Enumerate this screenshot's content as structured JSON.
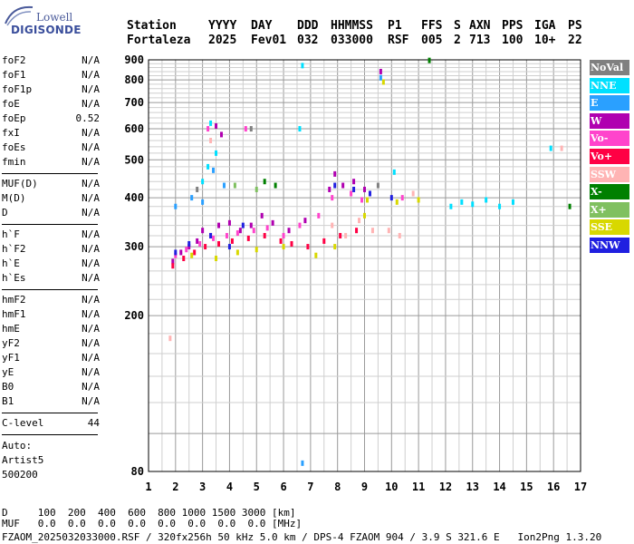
{
  "logo": {
    "top": "Lowell",
    "main": "DIGISONDE"
  },
  "header": {
    "labels": [
      "Station",
      "YYYY",
      "DAY",
      "DDD",
      "HHMMSS",
      "P1",
      "FFS",
      "S",
      "AXN",
      "PPS",
      "IGA",
      "PS"
    ],
    "values": [
      "Fortaleza",
      "2025",
      "Fev01",
      "032",
      "033000",
      "RSF",
      "005",
      "2",
      "713",
      "100",
      "10+",
      "22"
    ]
  },
  "params_group1": [
    {
      "k": "foF2",
      "v": "N/A"
    },
    {
      "k": "foF1",
      "v": "N/A"
    },
    {
      "k": "foF1p",
      "v": "N/A"
    },
    {
      "k": "foE",
      "v": "N/A"
    },
    {
      "k": "foEp",
      "v": "0.52"
    },
    {
      "k": "fxI",
      "v": "N/A"
    },
    {
      "k": "foEs",
      "v": "N/A"
    },
    {
      "k": "fmin",
      "v": "N/A"
    }
  ],
  "params_group2": [
    {
      "k": "MUF(D)",
      "v": "N/A"
    },
    {
      "k": "M(D)",
      "v": "N/A"
    },
    {
      "k": "D",
      "v": "N/A"
    }
  ],
  "params_group3": [
    {
      "k": "h`F",
      "v": "N/A"
    },
    {
      "k": "h`F2",
      "v": "N/A"
    },
    {
      "k": "h`E",
      "v": "N/A"
    },
    {
      "k": "h`Es",
      "v": "N/A"
    }
  ],
  "params_group4": [
    {
      "k": "hmF2",
      "v": "N/A"
    },
    {
      "k": "hmF1",
      "v": "N/A"
    },
    {
      "k": "hmE",
      "v": "N/A"
    },
    {
      "k": "yF2",
      "v": "N/A"
    },
    {
      "k": "yF1",
      "v": "N/A"
    },
    {
      "k": "yE",
      "v": "N/A"
    },
    {
      "k": "B0",
      "v": "N/A"
    },
    {
      "k": "B1",
      "v": "N/A"
    }
  ],
  "clevel": {
    "k": "C-level",
    "v": "44"
  },
  "auto": [
    "Auto:",
    "Artist5",
    "500200"
  ],
  "legend": [
    {
      "label": "NoVal",
      "color": "#808080"
    },
    {
      "label": "NNE",
      "color": "#00e0ff"
    },
    {
      "label": "E",
      "color": "#2aa0ff"
    },
    {
      "label": "W",
      "color": "#b000b0"
    },
    {
      "label": "Vo-",
      "color": "#ff44cc"
    },
    {
      "label": "Vo+",
      "color": "#ff0044"
    },
    {
      "label": "SSW",
      "color": "#ffb4b4"
    },
    {
      "label": "X-",
      "color": "#008000"
    },
    {
      "label": "X+",
      "color": "#80c060"
    },
    {
      "label": "SSE",
      "color": "#d8d800"
    },
    {
      "label": "NNW",
      "color": "#2020e0"
    }
  ],
  "footer": {
    "d_row": "D     100  200  400  600  800 1000 1500 3000 [km]",
    "muf_row": "MUF   0.0  0.0  0.0  0.0  0.0  0.0  0.0  0.0 [MHz]",
    "file_row": "FZAOM_2025032033000.RSF / 320fx256h 50 kHz 5.0 km / DPS-4 FZAOM 904 / 3.9 S 321.6 E   Ion2Png 1.3.20"
  },
  "chart_data": {
    "type": "scatter",
    "title": "",
    "xlabel": "",
    "ylabel": "",
    "xlim": [
      1,
      17
    ],
    "ylim": [
      80,
      900
    ],
    "x_ticks": [
      1,
      2,
      3,
      4,
      5,
      6,
      7,
      8,
      9,
      10,
      11,
      12,
      13,
      14,
      15,
      16,
      17
    ],
    "y_ticks": [
      80,
      200,
      300,
      400,
      500,
      600,
      700,
      800,
      900
    ],
    "y_scale": "log",
    "grid": true,
    "series": [
      {
        "name": "W",
        "points": [
          [
            1.9,
            275
          ],
          [
            2.2,
            290
          ],
          [
            2.5,
            300
          ],
          [
            2.8,
            310
          ],
          [
            3.0,
            330
          ],
          [
            3.3,
            320
          ],
          [
            3.6,
            340
          ],
          [
            4.0,
            345
          ],
          [
            4.4,
            330
          ],
          [
            4.8,
            340
          ],
          [
            5.2,
            360
          ],
          [
            5.6,
            345
          ],
          [
            6.2,
            330
          ],
          [
            6.8,
            350
          ],
          [
            7.7,
            420
          ],
          [
            7.9,
            460
          ],
          [
            8.2,
            430
          ],
          [
            8.6,
            440
          ],
          [
            9.0,
            420
          ],
          [
            9.6,
            840
          ],
          [
            3.5,
            610
          ],
          [
            3.7,
            580
          ]
        ]
      },
      {
        "name": "Vo-",
        "points": [
          [
            2.0,
            285
          ],
          [
            2.4,
            295
          ],
          [
            2.9,
            305
          ],
          [
            3.4,
            315
          ],
          [
            3.9,
            320
          ],
          [
            4.3,
            325
          ],
          [
            4.9,
            330
          ],
          [
            5.4,
            335
          ],
          [
            6.0,
            320
          ],
          [
            6.6,
            340
          ],
          [
            7.3,
            360
          ],
          [
            7.8,
            400
          ],
          [
            8.5,
            410
          ],
          [
            8.9,
            395
          ],
          [
            10.4,
            400
          ],
          [
            3.2,
            600
          ],
          [
            4.6,
            600
          ]
        ]
      },
      {
        "name": "Vo+",
        "points": [
          [
            1.9,
            268
          ],
          [
            2.3,
            280
          ],
          [
            2.7,
            290
          ],
          [
            3.1,
            300
          ],
          [
            3.6,
            305
          ],
          [
            4.1,
            310
          ],
          [
            4.7,
            315
          ],
          [
            5.3,
            320
          ],
          [
            5.9,
            310
          ],
          [
            6.3,
            305
          ],
          [
            6.9,
            300
          ],
          [
            7.5,
            310
          ],
          [
            8.1,
            320
          ],
          [
            8.7,
            330
          ]
        ]
      },
      {
        "name": "SSW",
        "points": [
          [
            7.8,
            340
          ],
          [
            8.3,
            320
          ],
          [
            8.8,
            350
          ],
          [
            9.3,
            330
          ],
          [
            9.9,
            330
          ],
          [
            10.3,
            320
          ],
          [
            10.8,
            410
          ],
          [
            1.8,
            175
          ],
          [
            16.3,
            535
          ],
          [
            3.3,
            560
          ]
        ]
      },
      {
        "name": "SSE",
        "points": [
          [
            2.6,
            285
          ],
          [
            3.5,
            280
          ],
          [
            4.3,
            290
          ],
          [
            5.0,
            295
          ],
          [
            6.0,
            300
          ],
          [
            7.2,
            285
          ],
          [
            7.9,
            300
          ],
          [
            9.1,
            395
          ],
          [
            9.7,
            790
          ],
          [
            10.2,
            390
          ],
          [
            11.0,
            395
          ],
          [
            9.0,
            360
          ]
        ]
      },
      {
        "name": "NNE",
        "points": [
          [
            3.0,
            440
          ],
          [
            3.2,
            480
          ],
          [
            3.5,
            520
          ],
          [
            3.3,
            620
          ],
          [
            6.6,
            600
          ],
          [
            6.7,
            870
          ],
          [
            12.2,
            380
          ],
          [
            12.6,
            390
          ],
          [
            13.0,
            385
          ],
          [
            13.5,
            395
          ],
          [
            14.0,
            380
          ],
          [
            14.5,
            390
          ],
          [
            15.9,
            535
          ],
          [
            10.1,
            465
          ]
        ]
      },
      {
        "name": "E",
        "points": [
          [
            2.0,
            380
          ],
          [
            2.6,
            400
          ],
          [
            3.0,
            390
          ],
          [
            3.4,
            470
          ],
          [
            3.8,
            430
          ],
          [
            6.7,
            84
          ],
          [
            9.6,
            810
          ]
        ]
      },
      {
        "name": "X-",
        "points": [
          [
            11.4,
            897
          ],
          [
            16.6,
            380
          ],
          [
            5.7,
            430
          ],
          [
            5.3,
            440
          ]
        ]
      },
      {
        "name": "X+",
        "points": [
          [
            4.2,
            430
          ],
          [
            5.0,
            420
          ]
        ]
      },
      {
        "name": "NNW",
        "points": [
          [
            2.0,
            290
          ],
          [
            2.5,
            305
          ],
          [
            3.3,
            320
          ],
          [
            4.0,
            300
          ],
          [
            4.5,
            340
          ],
          [
            7.9,
            430
          ],
          [
            8.6,
            420
          ],
          [
            9.2,
            410
          ],
          [
            10.0,
            400
          ]
        ]
      },
      {
        "name": "NoVal",
        "points": [
          [
            2.8,
            420
          ],
          [
            4.8,
            600
          ],
          [
            9.5,
            430
          ]
        ]
      }
    ]
  }
}
